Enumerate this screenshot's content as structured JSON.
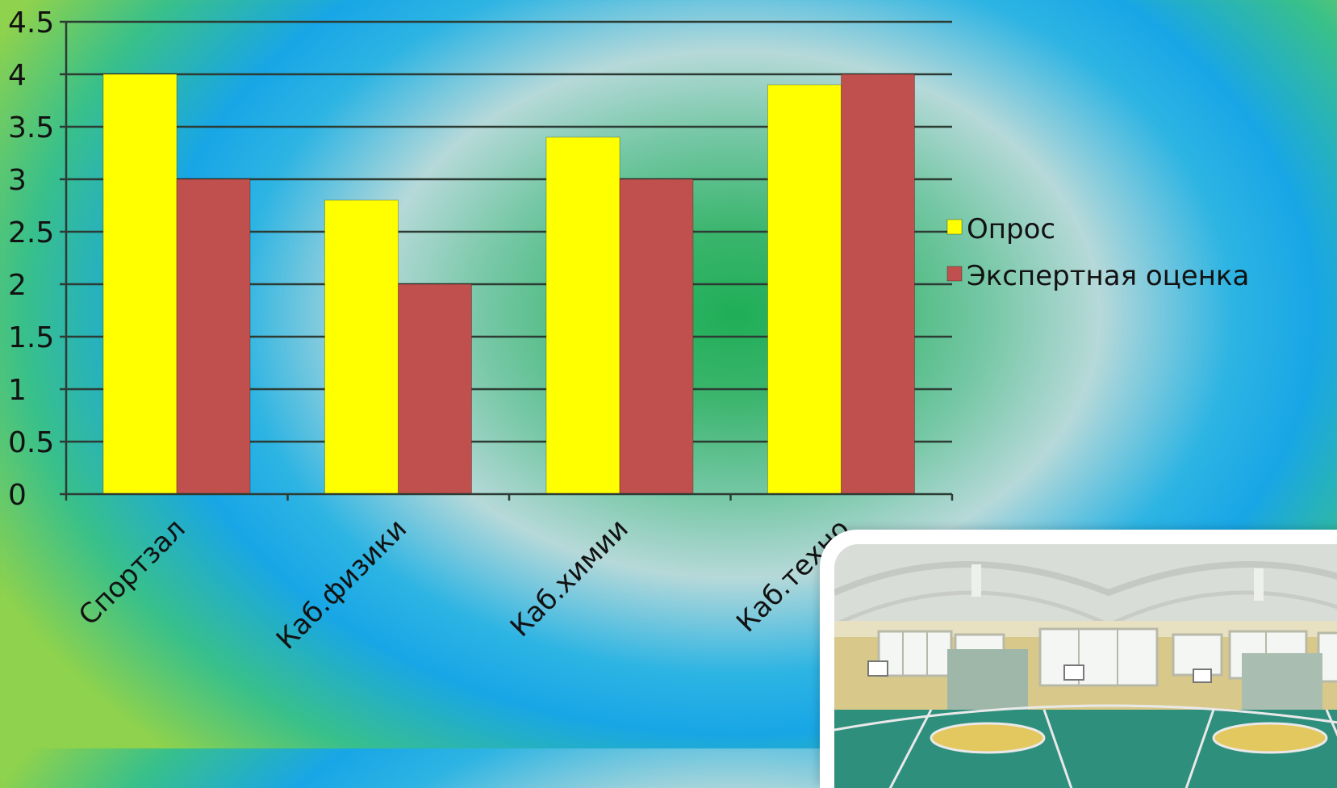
{
  "chart_data": {
    "type": "bar",
    "categories": [
      "Спортзал",
      "Каб.физики",
      "Каб.химии",
      "Каб.техно"
    ],
    "series": [
      {
        "name": "Опрос",
        "values": [
          4.0,
          2.8,
          3.4,
          3.9
        ],
        "color": "#ffff00"
      },
      {
        "name": "Экспертная оценка",
        "values": [
          3.0,
          2.0,
          3.0,
          4.0
        ],
        "color": "#c0504d"
      }
    ],
    "ylim": [
      0,
      4.5
    ],
    "yticks": [
      "0",
      "0.5",
      "1",
      "1.5",
      "2",
      "2.5",
      "3",
      "3.5",
      "4",
      "4.5"
    ],
    "grid": true,
    "legend_position": "right"
  },
  "photo": {
    "subject": "panorama of school gymnasium",
    "icon": "gym-photo"
  }
}
